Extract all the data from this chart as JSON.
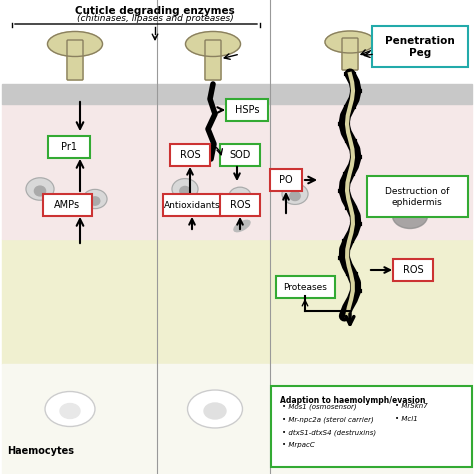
{
  "title": "Cuticle degrading enzymes",
  "subtitle": "(chitinases, lipases and proteases)",
  "bg_color": "#f5f5dc",
  "cuticle_color": "#b0b0b0",
  "epidermis_color": "#f0c8c8",
  "haemolymph_color": "#eeeebb",
  "fungus_color": "#d4cfa0",
  "text_color": "#222222",
  "panel1_labels": [
    "Pr1",
    "AMPs"
  ],
  "panel1_label_colors": [
    "#4aaa4a",
    "#cc3333"
  ],
  "panel2_labels": [
    "HSPs",
    "ROS",
    "SOD",
    "Antioxidants",
    "ROS"
  ],
  "panel2_label_colors": [
    "#4aaa4a",
    "#cc3333",
    "#4aaa4a",
    "#cc3333",
    "#cc3333"
  ],
  "panel3_labels": [
    "PO",
    "ROS",
    "Proteases",
    "Destruction of\nephidermis"
  ],
  "panel3_label_colors": [
    "#cc3333",
    "#cc3333",
    "#4aaa4a",
    "#4aaa4a"
  ],
  "penetration_peg_label": "Penetration\nPeg",
  "haemocytes_label": "Haemocytes",
  "adaption_title": "Adaption to haemolymph/evasion",
  "adaption_items": [
    "Mos1 (osmosensor)",
    "Mr-npc2a (sterol carrier)",
    "dtxS1-dtxS4 (destruxins)",
    "MrpacC"
  ],
  "adaption_items_right": [
    "MrSkn7",
    "Mcl1"
  ]
}
